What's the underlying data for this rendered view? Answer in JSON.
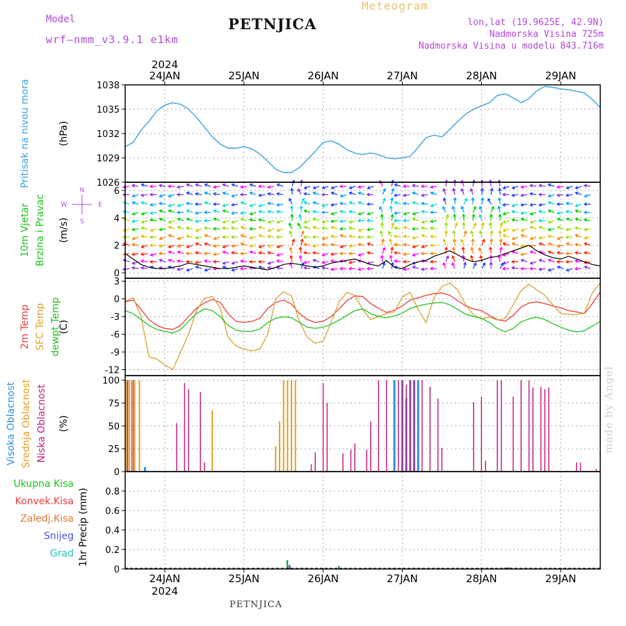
{
  "header": {
    "title": "PETNJICA",
    "model_label": "Model",
    "model_name": "wrf—nmm_v3.9.1 e1km",
    "meteogram": "Meteogram",
    "lonlat": "lon,lat (19.9625E, 42.9N)",
    "altitude": "Nadmorska Visina 725m",
    "model_altitude": "Nadmorska Visina u modelu 843.716m",
    "footer": "PETNJICA",
    "credit": "made by Angel"
  },
  "time_axis": {
    "year": "2024",
    "ticks": [
      "24JAN",
      "25JAN",
      "26JAN",
      "27JAN",
      "28JAN",
      "29JAN"
    ],
    "range_days": [
      -0.5,
      5.5
    ]
  },
  "colors": {
    "pressure": "#3aa0e0",
    "wind_speed": "#000000",
    "t2m": "#e83c3c",
    "tsfc": "#d8a030",
    "dewpt": "#20c020",
    "cloud_high": "#2f8fe0",
    "cloud_mid": "#e0a020",
    "cloud_low": "#c02080",
    "precip_total": "#20a050",
    "precip_conv": "#e83c3c",
    "precip_frz": "#e87830",
    "precip_snow": "#5050e0",
    "precip_grad": "#20c0c0"
  },
  "chart_data": [
    {
      "type": "line",
      "name": "pressure",
      "ylabel": "Pritisak na nivou mora",
      "unit": "(hPa)",
      "ylim": [
        1026,
        1038
      ],
      "yticks": [
        1026,
        1029,
        1032,
        1035,
        1038
      ],
      "grid": true,
      "x": [
        -0.5,
        -0.4,
        -0.3,
        -0.2,
        -0.1,
        0.0,
        0.1,
        0.2,
        0.3,
        0.4,
        0.5,
        0.6,
        0.7,
        0.8,
        0.9,
        1.0,
        1.1,
        1.2,
        1.3,
        1.4,
        1.5,
        1.6,
        1.7,
        1.8,
        1.9,
        2.0,
        2.1,
        2.2,
        2.3,
        2.4,
        2.5,
        2.6,
        2.7,
        2.8,
        2.9,
        3.0,
        3.1,
        3.2,
        3.3,
        3.4,
        3.5,
        3.6,
        3.7,
        3.8,
        3.9,
        4.0,
        4.1,
        4.2,
        4.3,
        4.4,
        4.5,
        4.6,
        4.7,
        4.8,
        4.9,
        5.0,
        5.1,
        5.2,
        5.3,
        5.4,
        5.5
      ],
      "values": [
        1030.4,
        1030.9,
        1032.4,
        1033.5,
        1034.8,
        1035.5,
        1035.8,
        1035.6,
        1035.0,
        1034.0,
        1032.8,
        1031.6,
        1030.7,
        1030.2,
        1030.2,
        1030.4,
        1030.1,
        1029.5,
        1028.6,
        1027.6,
        1027.2,
        1027.2,
        1027.8,
        1028.8,
        1029.8,
        1030.9,
        1031.1,
        1030.7,
        1030.0,
        1029.6,
        1029.4,
        1029.6,
        1029.4,
        1029.0,
        1028.9,
        1029.0,
        1029.2,
        1030.3,
        1031.5,
        1031.8,
        1031.6,
        1032.5,
        1033.5,
        1034.4,
        1035.0,
        1035.4,
        1035.8,
        1036.7,
        1036.9,
        1036.4,
        1035.8,
        1036.3,
        1037.3,
        1037.8,
        1037.7,
        1037.5,
        1037.4,
        1037.2,
        1037.0,
        1036.2,
        1035.2
      ]
    },
    {
      "type": "line",
      "name": "wind",
      "ylabel": "10m Vjetar Brzina i Pravac",
      "unit": "(m/s)",
      "direction_legend": [
        "N",
        "W",
        "E",
        "S"
      ],
      "ylim": [
        -0.4,
        6.6
      ],
      "yticks": [
        0,
        2,
        4,
        6
      ],
      "grid": true,
      "x": [
        -0.5,
        -0.4,
        -0.3,
        -0.2,
        -0.1,
        0.0,
        0.1,
        0.2,
        0.3,
        0.4,
        0.5,
        0.6,
        0.7,
        0.8,
        0.9,
        1.0,
        1.1,
        1.2,
        1.3,
        1.4,
        1.5,
        1.6,
        1.7,
        1.8,
        1.9,
        2.0,
        2.1,
        2.2,
        2.3,
        2.4,
        2.5,
        2.6,
        2.7,
        2.8,
        2.9,
        3.0,
        3.1,
        3.2,
        3.3,
        3.4,
        3.5,
        3.6,
        3.7,
        3.8,
        3.9,
        4.0,
        4.1,
        4.2,
        4.3,
        4.4,
        4.5,
        4.6,
        4.7,
        4.8,
        4.9,
        5.0,
        5.1,
        5.2,
        5.3,
        5.4,
        5.5
      ],
      "values": [
        1.4,
        1.0,
        0.6,
        0.4,
        0.3,
        0.3,
        0.4,
        0.5,
        0.7,
        0.6,
        0.5,
        0.4,
        0.3,
        0.3,
        0.4,
        0.5,
        0.4,
        0.3,
        0.2,
        0.4,
        0.6,
        0.7,
        0.6,
        0.5,
        0.4,
        0.5,
        0.7,
        0.8,
        0.9,
        1.0,
        0.8,
        0.6,
        0.5,
        0.9,
        0.4,
        0.3,
        0.6,
        0.8,
        0.9,
        1.2,
        1.4,
        1.6,
        1.3,
        1.0,
        0.8,
        0.9,
        1.1,
        1.2,
        1.4,
        1.6,
        1.8,
        2.0,
        1.6,
        1.3,
        1.1,
        1.0,
        1.2,
        1.0,
        0.8,
        0.6,
        0.5
      ]
    },
    {
      "type": "line",
      "name": "temperature",
      "ylabel": "2m Temp / SFC Temp / dewpt Temp",
      "unit": "(C)",
      "ylim": [
        -13,
        3.5
      ],
      "yticks": [
        3,
        0,
        -3,
        -6,
        -9,
        -12
      ],
      "grid": true,
      "x": [
        -0.5,
        -0.4,
        -0.3,
        -0.2,
        -0.1,
        0.0,
        0.1,
        0.2,
        0.3,
        0.4,
        0.5,
        0.6,
        0.7,
        0.8,
        0.9,
        1.0,
        1.1,
        1.2,
        1.3,
        1.4,
        1.5,
        1.6,
        1.7,
        1.8,
        1.9,
        2.0,
        2.1,
        2.2,
        2.3,
        2.4,
        2.5,
        2.6,
        2.7,
        2.8,
        2.9,
        3.0,
        3.1,
        3.2,
        3.3,
        3.4,
        3.5,
        3.6,
        3.7,
        3.8,
        3.9,
        4.0,
        4.1,
        4.2,
        4.3,
        4.4,
        4.5,
        4.6,
        4.7,
        4.8,
        4.9,
        5.0,
        5.1,
        5.2,
        5.3,
        5.4,
        5.5
      ],
      "series": [
        {
          "name": "2m Temp",
          "values": [
            -0.5,
            -0.2,
            -1.8,
            -3.5,
            -4.5,
            -5.0,
            -5.2,
            -4.5,
            -3.0,
            -1.6,
            -0.7,
            -0.1,
            -0.6,
            -2.5,
            -3.8,
            -4.0,
            -3.8,
            -3.3,
            -1.6,
            -0.6,
            -0.2,
            -0.9,
            -2.5,
            -3.5,
            -4.0,
            -3.8,
            -3.0,
            -1.7,
            -0.3,
            0.5,
            0.4,
            -0.8,
            -1.6,
            -2.3,
            -1.9,
            -1.2,
            -0.2,
            0.2,
            0.6,
            0.9,
            1.0,
            0.6,
            -0.3,
            -1.2,
            -1.7,
            -2.0,
            -2.8,
            -3.5,
            -3.8,
            -2.8,
            -1.4,
            -0.7,
            -0.5,
            -0.8,
            -1.2,
            -1.5,
            -2.0,
            -2.2,
            -2.5,
            -0.8,
            1.2
          ]
        },
        {
          "name": "SFC Temp",
          "values": [
            -0.4,
            0.2,
            -3.0,
            -9.8,
            -10.2,
            -11.2,
            -12.0,
            -9.0,
            -6.0,
            -2.0,
            0.1,
            0.4,
            -1.5,
            -6.5,
            -8.0,
            -8.5,
            -8.8,
            -8.5,
            -6.0,
            0.0,
            1.2,
            0.5,
            -3.8,
            -6.5,
            -7.5,
            -7.2,
            -4.0,
            -0.5,
            1.1,
            0.6,
            -1.8,
            -3.5,
            -3.0,
            -2.5,
            -2.2,
            0.3,
            1.1,
            -1.8,
            -4.0,
            0.2,
            2.1,
            2.7,
            1.5,
            -1.0,
            -2.7,
            -3.4,
            -3.1,
            -3.6,
            -3.3,
            -1.0,
            1.4,
            2.5,
            1.5,
            0.6,
            -1.0,
            -2.5,
            -2.6,
            -2.7,
            -2.4,
            1.0,
            2.7
          ]
        },
        {
          "name": "dewpt Temp",
          "values": [
            -2.0,
            -2.5,
            -3.5,
            -4.5,
            -5.2,
            -5.5,
            -5.8,
            -5.2,
            -3.8,
            -2.5,
            -1.7,
            -2.0,
            -3.0,
            -4.5,
            -5.3,
            -5.5,
            -5.5,
            -5.1,
            -4.0,
            -3.3,
            -3.0,
            -3.2,
            -4.0,
            -4.8,
            -5.0,
            -4.8,
            -4.3,
            -3.6,
            -2.8,
            -2.0,
            -1.7,
            -2.5,
            -3.0,
            -3.2,
            -2.9,
            -2.4,
            -1.6,
            -1.2,
            -0.9,
            -0.7,
            -0.6,
            -1.0,
            -1.8,
            -2.6,
            -3.0,
            -3.3,
            -4.0,
            -5.0,
            -5.6,
            -5.0,
            -3.9,
            -3.4,
            -3.1,
            -3.5,
            -4.2,
            -4.8,
            -5.3,
            -5.6,
            -5.4,
            -4.6,
            -3.8
          ]
        }
      ]
    },
    {
      "type": "bar",
      "name": "cloud_cover",
      "ylabel": "Visoka Oblacnost / Srednja Oblacnost / Niska Oblacnost",
      "unit": "(%)",
      "ylim": [
        0,
        105
      ],
      "yticks": [
        0,
        25,
        50,
        75,
        100
      ],
      "grid": true,
      "series": [
        {
          "name": "Visoka Oblacnost",
          "x": [
            -0.25,
            2.9,
            3.0,
            3.05,
            3.1,
            3.15,
            3.2
          ],
          "values": [
            5,
            100,
            100,
            80,
            100,
            100,
            100
          ]
        },
        {
          "name": "Srednja Oblacnost",
          "x": [
            -0.48,
            -0.45,
            -0.42,
            -0.38,
            -0.32,
            0.6,
            1.4,
            1.45,
            1.5,
            1.55,
            1.6,
            1.65
          ],
          "values": [
            100,
            100,
            100,
            100,
            100,
            67,
            28,
            55,
            100,
            100,
            100,
            100
          ]
        },
        {
          "name": "Niska Oblacnost",
          "x": [
            -0.47,
            -0.4,
            0.15,
            0.25,
            0.3,
            0.45,
            0.5,
            1.85,
            1.9,
            2.0,
            2.05,
            2.25,
            2.35,
            2.4,
            2.55,
            2.6,
            2.7,
            2.8,
            2.95,
            3.0,
            3.05,
            3.1,
            3.15,
            3.25,
            3.35,
            3.45,
            3.5,
            3.9,
            4.0,
            4.05,
            4.2,
            4.25,
            4.4,
            4.5,
            4.6,
            4.65,
            4.75,
            4.8,
            4.85,
            5.2,
            5.25,
            5.45
          ],
          "values": [
            100,
            100,
            53,
            97,
            90,
            87,
            10,
            8,
            21,
            97,
            75,
            20,
            24,
            31,
            24,
            55,
            100,
            100,
            100,
            100,
            95,
            100,
            100,
            100,
            93,
            80,
            26,
            76,
            82,
            12,
            100,
            100,
            82,
            100,
            100,
            92,
            93,
            90,
            92,
            10,
            10,
            3
          ]
        }
      ]
    },
    {
      "type": "bar",
      "name": "precipitation",
      "ylabel": "1hr Precip (mm)",
      "legend": [
        "Ukupna Kisa",
        "Konvek.Kisa",
        "Zaledj.Kisa",
        "Snijeg",
        "Grad"
      ],
      "ylim": [
        0,
        1.0
      ],
      "yticks": [
        0,
        0.2,
        0.4,
        0.6,
        0.8
      ],
      "grid": true,
      "series": [
        {
          "name": "Ukupna Kisa",
          "x": [
            1.55,
            1.58,
            2.2,
            3.75,
            4.3,
            4.35
          ],
          "values": [
            0.09,
            0.03,
            0.03,
            0.01,
            0.015,
            0.015
          ]
        },
        {
          "name": "Snijeg",
          "x": [
            1.56,
            4.32
          ],
          "values": [
            0.04,
            0.015
          ]
        }
      ]
    }
  ],
  "panel_labels": [
    {
      "lines": [
        "Pritisak na nivou mora"
      ],
      "colors": [
        "#3aa0e0"
      ],
      "unit": "(hPa)"
    },
    {
      "lines": [
        "10m Vjetar",
        "Brzina i Pravac"
      ],
      "colors": [
        "#20c020",
        "#20c020"
      ],
      "unit": "(m/s)"
    },
    {
      "lines": [
        "2m Temp",
        "SFC Temp",
        "dewpt Temp"
      ],
      "colors": [
        "#e83c3c",
        "#d8a030",
        "#20c020"
      ],
      "unit": "(C)"
    },
    {
      "lines": [
        "Visoka Oblacnost",
        "Srednja Oblacnost",
        "Niska Oblacnost"
      ],
      "colors": [
        "#2f8fe0",
        "#e0a020",
        "#c02080"
      ],
      "unit": "(%)"
    }
  ],
  "precip_legend": [
    {
      "label": "Ukupna Kisa",
      "color": "#20c020"
    },
    {
      "label": "Konvek.Kisa",
      "color": "#e83c3c"
    },
    {
      "label": "Zaledj.Kisa",
      "color": "#e87830"
    },
    {
      "label": "Snijeg",
      "color": "#5050e0"
    },
    {
      "label": "Grad",
      "color": "#20c0c0"
    }
  ]
}
